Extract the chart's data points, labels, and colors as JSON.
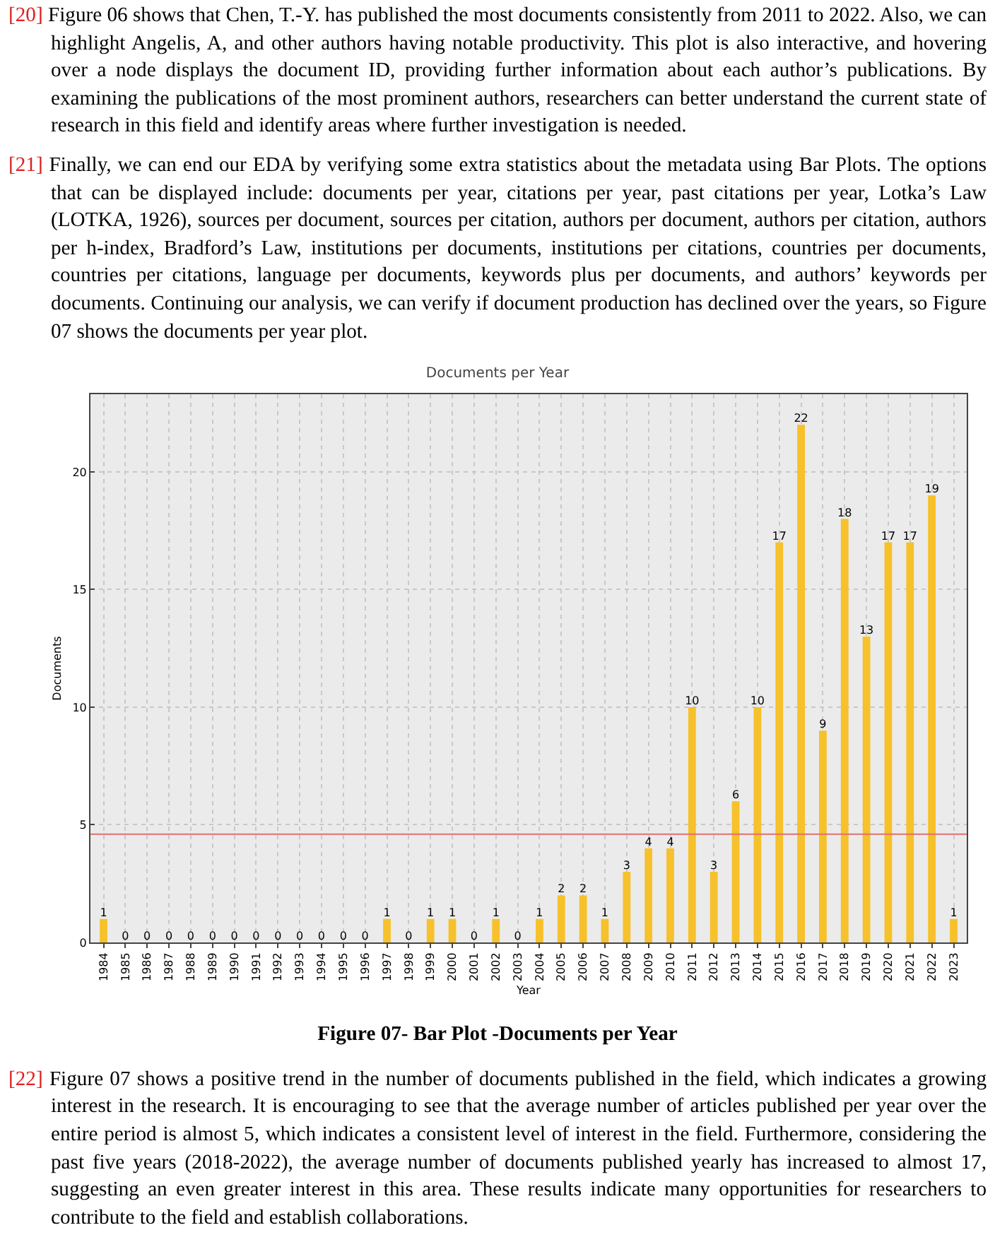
{
  "chart_data": {
    "type": "bar",
    "title": "Documents per Year",
    "xlabel": "Year",
    "ylabel": "Documents",
    "categories": [
      "1984",
      "1985",
      "1986",
      "1987",
      "1988",
      "1989",
      "1990",
      "1991",
      "1992",
      "1993",
      "1994",
      "1995",
      "1996",
      "1997",
      "1998",
      "1999",
      "2000",
      "2001",
      "2002",
      "2003",
      "2004",
      "2005",
      "2006",
      "2007",
      "2008",
      "2009",
      "2010",
      "2011",
      "2012",
      "2013",
      "2014",
      "2015",
      "2016",
      "2017",
      "2018",
      "2019",
      "2020",
      "2021",
      "2022",
      "2023"
    ],
    "values": [
      1,
      0,
      0,
      0,
      0,
      0,
      0,
      0,
      0,
      0,
      0,
      0,
      0,
      1,
      0,
      1,
      1,
      0,
      1,
      0,
      1,
      2,
      2,
      1,
      3,
      4,
      4,
      10,
      3,
      6,
      10,
      17,
      22,
      9,
      18,
      13,
      17,
      17,
      19,
      1
    ],
    "color": "#f6c12b",
    "ylim": [
      0,
      23.3
    ],
    "yticks": [
      0,
      5,
      10,
      15,
      20
    ],
    "grid": true,
    "data_labels": true,
    "ref_lines": [
      {
        "axis": "y",
        "value": 4.6,
        "color": "#e07070"
      }
    ],
    "annotations": [
      "[20] Figure 06 shows that Chen, T.-Y. has published the most documents consistently from 2011 to 2022. Also, we can highlight Angelis, A, and other authors having notable productivity. This plot is also interactive, and hovering over a node displays the document ID, providing further information about each author’s publications. By examining the publications of the most prominent authors, researchers can better understand the current state of research in this field and identify areas where further investigation is needed.",
      "[21] Finally, we can end our EDA by verifying some extra statistics about the metadata using Bar Plots. The options that can be displayed include: documents per year, citations per year, past citations per year, Lotka’s Law (LOTKA, 1926), sources per document, sources per citation, authors per document, authors per citation, authors per h-index, Bradford’s Law, institutions per documents, institutions per citations, countries per documents, countries per citations, language per documents, keywords plus per documents, and authors’ keywords per documents. Continuing our analysis, we can verify if document production has declined over the years, so Figure 07 shows the documents per year plot.",
      "Figure 07- Bar Plot -Documents per Year",
      "[22] Figure 07 shows a positive trend in the number of documents published in the field, which indicates a growing interest in the research. It is encouraging to see that the average number of articles published per year over the entire period is almost 5, which indicates a consistent level of interest in the field. Furthermore, considering the past five years (2018-2022), the average number of documents published yearly has increased to almost 17, suggesting an even greater interest in this area. These results indicate many opportunities for researchers to contribute to the field and establish collaborations."
    ]
  }
}
